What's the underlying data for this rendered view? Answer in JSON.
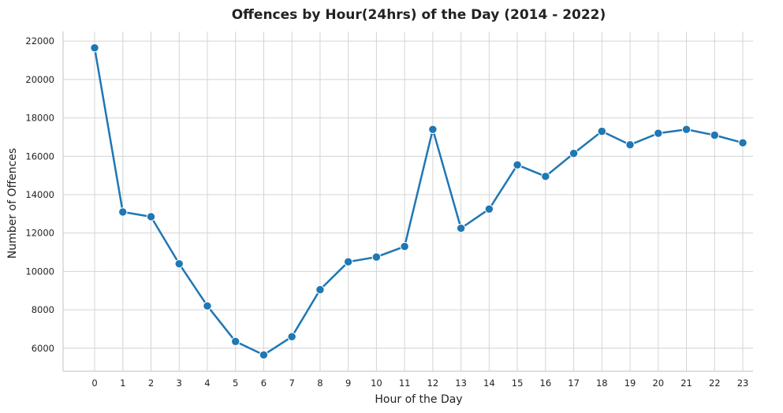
{
  "chart_data": {
    "type": "line",
    "title": "Offences by Hour(24hrs) of the Day (2014 - 2022)",
    "xlabel": "Hour of the Day",
    "ylabel": "Number of Offences",
    "categories": [
      "0",
      "1",
      "2",
      "3",
      "4",
      "5",
      "6",
      "7",
      "8",
      "9",
      "10",
      "11",
      "12",
      "13",
      "14",
      "15",
      "16",
      "17",
      "18",
      "19",
      "20",
      "21",
      "22",
      "23"
    ],
    "series": [
      {
        "values": [
          21650,
          13100,
          12850,
          10400,
          8200,
          6350,
          5650,
          6600,
          9050,
          10500,
          10750,
          11300,
          17400,
          12250,
          13250,
          15550,
          14950,
          16150,
          17300,
          16600,
          17200,
          17400,
          17100,
          16700
        ]
      }
    ],
    "yticks": [
      6000,
      8000,
      10000,
      12000,
      14000,
      16000,
      18000,
      20000,
      22000
    ],
    "ylim": [
      4800,
      22500
    ],
    "grid": true,
    "line_color": "#1f77b4"
  }
}
